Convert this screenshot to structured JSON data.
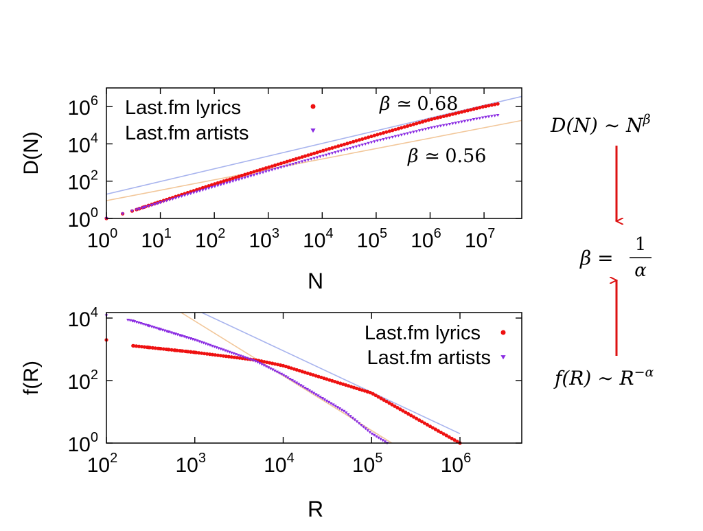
{
  "colors": {
    "lyrics": "#ee1111",
    "artists": "#8a2be2",
    "fit_lyrics": "#a8b4ee",
    "fit_artists": "#f2c79a",
    "arrow": "#dd1111"
  },
  "equations": {
    "heaps_lhs": "D(N) ∼ N",
    "heaps_exp": "β",
    "relation_beta": "β =",
    "relation_num": "1",
    "relation_den": "α",
    "zipf_lhs": "f(R) ∼ R",
    "zipf_exp": "−α"
  },
  "chart_data": [
    {
      "type": "scatter",
      "xlabel": "N",
      "ylabel": "D(N)",
      "xscale": "log",
      "yscale": "log",
      "xlim": [
        1,
        50000000
      ],
      "ylim": [
        1,
        10000000
      ],
      "xticks": [
        {
          "value": 1,
          "base": "10",
          "exp": "0"
        },
        {
          "value": 10,
          "base": "10",
          "exp": "1"
        },
        {
          "value": 100,
          "base": "10",
          "exp": "2"
        },
        {
          "value": 1000,
          "base": "10",
          "exp": "3"
        },
        {
          "value": 10000,
          "base": "10",
          "exp": "4"
        },
        {
          "value": 100000,
          "base": "10",
          "exp": "5"
        },
        {
          "value": 1000000,
          "base": "10",
          "exp": "6"
        },
        {
          "value": 10000000,
          "base": "10",
          "exp": "7"
        }
      ],
      "yticks": [
        {
          "value": 1,
          "base": "10",
          "exp": "0"
        },
        {
          "value": 100,
          "base": "10",
          "exp": "2"
        },
        {
          "value": 10000,
          "base": "10",
          "exp": "4"
        },
        {
          "value": 1000000,
          "base": "10",
          "exp": "6"
        }
      ],
      "legend_position": "top-left",
      "series": [
        {
          "name": "Last.fm lyrics",
          "marker": "circle",
          "n_min": 2,
          "n_max": 18000000,
          "points": [
            [
              1,
              1
            ],
            [
              3,
              2.5
            ],
            [
              10,
              8
            ],
            [
              100,
              70
            ],
            [
              1000,
              550
            ],
            [
              10000,
              4200
            ],
            [
              100000,
              30000
            ],
            [
              1000000,
              200000
            ],
            [
              10000000,
              1000000
            ],
            [
              18000000,
              1400000
            ]
          ]
        },
        {
          "name": "Last.fm artists",
          "marker": "triangle",
          "n_min": 2,
          "n_max": 18000000,
          "points": [
            [
              1,
              1
            ],
            [
              3,
              2.5
            ],
            [
              10,
              7
            ],
            [
              100,
              50
            ],
            [
              1000,
              350
            ],
            [
              10000,
              2200
            ],
            [
              100000,
              14000
            ],
            [
              1000000,
              70000
            ],
            [
              10000000,
              260000
            ],
            [
              18000000,
              340000
            ]
          ]
        }
      ],
      "fits": [
        {
          "series": "Last.fm lyrics",
          "beta": 0.68,
          "label_sym": "β ≃",
          "label_val": "0.68",
          "x": [
            1,
            50000000
          ],
          "y": [
            20,
            3500000
          ]
        },
        {
          "series": "Last.fm artists",
          "beta": 0.56,
          "label_sym": "β ≃",
          "label_val": "0.56",
          "x": [
            1,
            50000000
          ],
          "y": [
            9,
            180000
          ]
        }
      ]
    },
    {
      "type": "scatter",
      "xlabel": "R",
      "ylabel": "f(R)",
      "xscale": "log",
      "yscale": "log",
      "xlim": [
        100,
        5000000
      ],
      "ylim": [
        1,
        15000
      ],
      "xticks": [
        {
          "value": 100,
          "base": "10",
          "exp": "2"
        },
        {
          "value": 1000,
          "base": "10",
          "exp": "3"
        },
        {
          "value": 10000,
          "base": "10",
          "exp": "4"
        },
        {
          "value": 100000,
          "base": "10",
          "exp": "5"
        },
        {
          "value": 1000000,
          "base": "10",
          "exp": "6"
        }
      ],
      "yticks": [
        {
          "value": 1,
          "base": "10",
          "exp": "0"
        },
        {
          "value": 100,
          "base": "10",
          "exp": "2"
        },
        {
          "value": 10000,
          "base": "10",
          "exp": "4"
        }
      ],
      "legend_position": "top-right",
      "series": [
        {
          "name": "Last.fm lyrics",
          "marker": "circle",
          "r_max": 1000000,
          "points": [
            [
              100,
              2000
            ],
            [
              200,
              1300
            ],
            [
              1000,
              800
            ],
            [
              5000,
              450
            ],
            [
              10000,
              300
            ],
            [
              100000,
              40
            ],
            [
              500000,
              3
            ],
            [
              1000000,
              1
            ]
          ]
        },
        {
          "name": "Last.fm artists",
          "marker": "triangle",
          "r_max": 150000,
          "points": [
            [
              100,
              12000
            ],
            [
              200,
              8000
            ],
            [
              1000,
              2000
            ],
            [
              5000,
              400
            ],
            [
              10000,
              150
            ],
            [
              50000,
              10
            ],
            [
              100000,
              2
            ],
            [
              150000,
              1
            ]
          ]
        }
      ],
      "fits": [
        {
          "series": "Last.fm lyrics",
          "x": [
            1200,
            1000000
          ],
          "y": [
            15000,
            2
          ]
        },
        {
          "series": "Last.fm artists",
          "x": [
            700,
            170000
          ],
          "y": [
            15000,
            1
          ]
        }
      ]
    }
  ]
}
